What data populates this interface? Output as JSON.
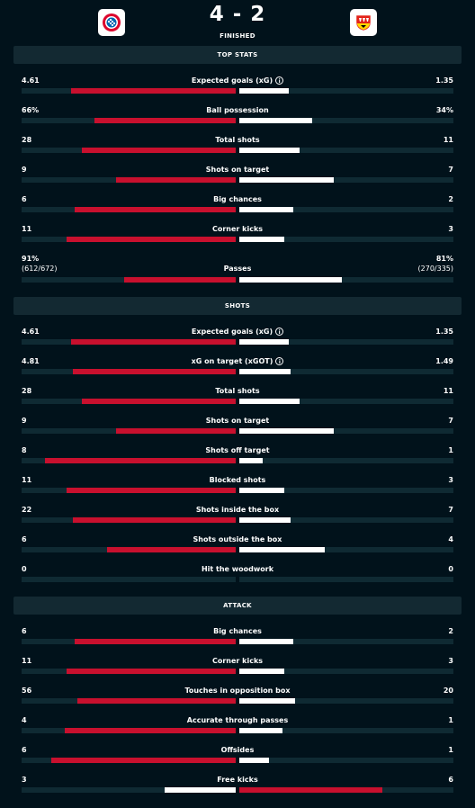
{
  "match": {
    "home_score": "4",
    "away_score": "2",
    "separator": "-",
    "status": "FINISHED",
    "home_team_logo": "bayern-munich-logo",
    "away_team_logo": "vfb-stuttgart-logo"
  },
  "colors": {
    "home": "#c8102e",
    "away": "#ffffff",
    "background": "#01121b",
    "track": "#0f2a33"
  },
  "sections": [
    {
      "title": "TOP STATS",
      "stats": [
        {
          "label": "Expected goals (xG)",
          "home": "4.61",
          "away": "1.35",
          "home_frac": 0.77,
          "away_frac": 0.23,
          "info": true
        },
        {
          "label": "Ball possession",
          "home": "66%",
          "away": "34%",
          "home_frac": 0.66,
          "away_frac": 0.34
        },
        {
          "label": "Total shots",
          "home": "28",
          "away": "11",
          "home_frac": 0.72,
          "away_frac": 0.28
        },
        {
          "label": "Shots on target",
          "home": "9",
          "away": "7",
          "home_frac": 0.56,
          "away_frac": 0.44
        },
        {
          "label": "Big chances",
          "home": "6",
          "away": "2",
          "home_frac": 0.75,
          "away_frac": 0.25
        },
        {
          "label": "Corner kicks",
          "home": "11",
          "away": "3",
          "home_frac": 0.79,
          "away_frac": 0.21
        },
        {
          "label": "Passes",
          "home": "91%",
          "away": "81%",
          "home_sub": "(612/672)",
          "away_sub": "(270/335)",
          "home_frac": 0.52,
          "away_frac": 0.48
        }
      ]
    },
    {
      "title": "SHOTS",
      "stats": [
        {
          "label": "Expected goals (xG)",
          "home": "4.61",
          "away": "1.35",
          "home_frac": 0.77,
          "away_frac": 0.23,
          "info": true
        },
        {
          "label": "xG on target (xGOT)",
          "home": "4.81",
          "away": "1.49",
          "home_frac": 0.76,
          "away_frac": 0.24,
          "info": true
        },
        {
          "label": "Total shots",
          "home": "28",
          "away": "11",
          "home_frac": 0.72,
          "away_frac": 0.28
        },
        {
          "label": "Shots on target",
          "home": "9",
          "away": "7",
          "home_frac": 0.56,
          "away_frac": 0.44
        },
        {
          "label": "Shots off target",
          "home": "8",
          "away": "1",
          "home_frac": 0.89,
          "away_frac": 0.11
        },
        {
          "label": "Blocked shots",
          "home": "11",
          "away": "3",
          "home_frac": 0.79,
          "away_frac": 0.21
        },
        {
          "label": "Shots inside the box",
          "home": "22",
          "away": "7",
          "home_frac": 0.76,
          "away_frac": 0.24
        },
        {
          "label": "Shots outside the box",
          "home": "6",
          "away": "4",
          "home_frac": 0.6,
          "away_frac": 0.4
        },
        {
          "label": "Hit the woodwork",
          "home": "0",
          "away": "0",
          "home_frac": 0,
          "away_frac": 0
        }
      ]
    },
    {
      "title": "ATTACK",
      "stats": [
        {
          "label": "Big chances",
          "home": "6",
          "away": "2",
          "home_frac": 0.75,
          "away_frac": 0.25
        },
        {
          "label": "Corner kicks",
          "home": "11",
          "away": "3",
          "home_frac": 0.79,
          "away_frac": 0.21
        },
        {
          "label": "Touches in opposition box",
          "home": "56",
          "away": "20",
          "home_frac": 0.74,
          "away_frac": 0.26
        },
        {
          "label": "Accurate through passes",
          "home": "4",
          "away": "1",
          "home_frac": 0.8,
          "away_frac": 0.2
        },
        {
          "label": "Offsides",
          "home": "6",
          "away": "1",
          "home_frac": 0.86,
          "away_frac": 0.14
        },
        {
          "label": "Free kicks",
          "home": "3",
          "away": "6",
          "home_frac": 0.33,
          "away_frac": 0.67,
          "away_leads": true
        }
      ]
    }
  ]
}
